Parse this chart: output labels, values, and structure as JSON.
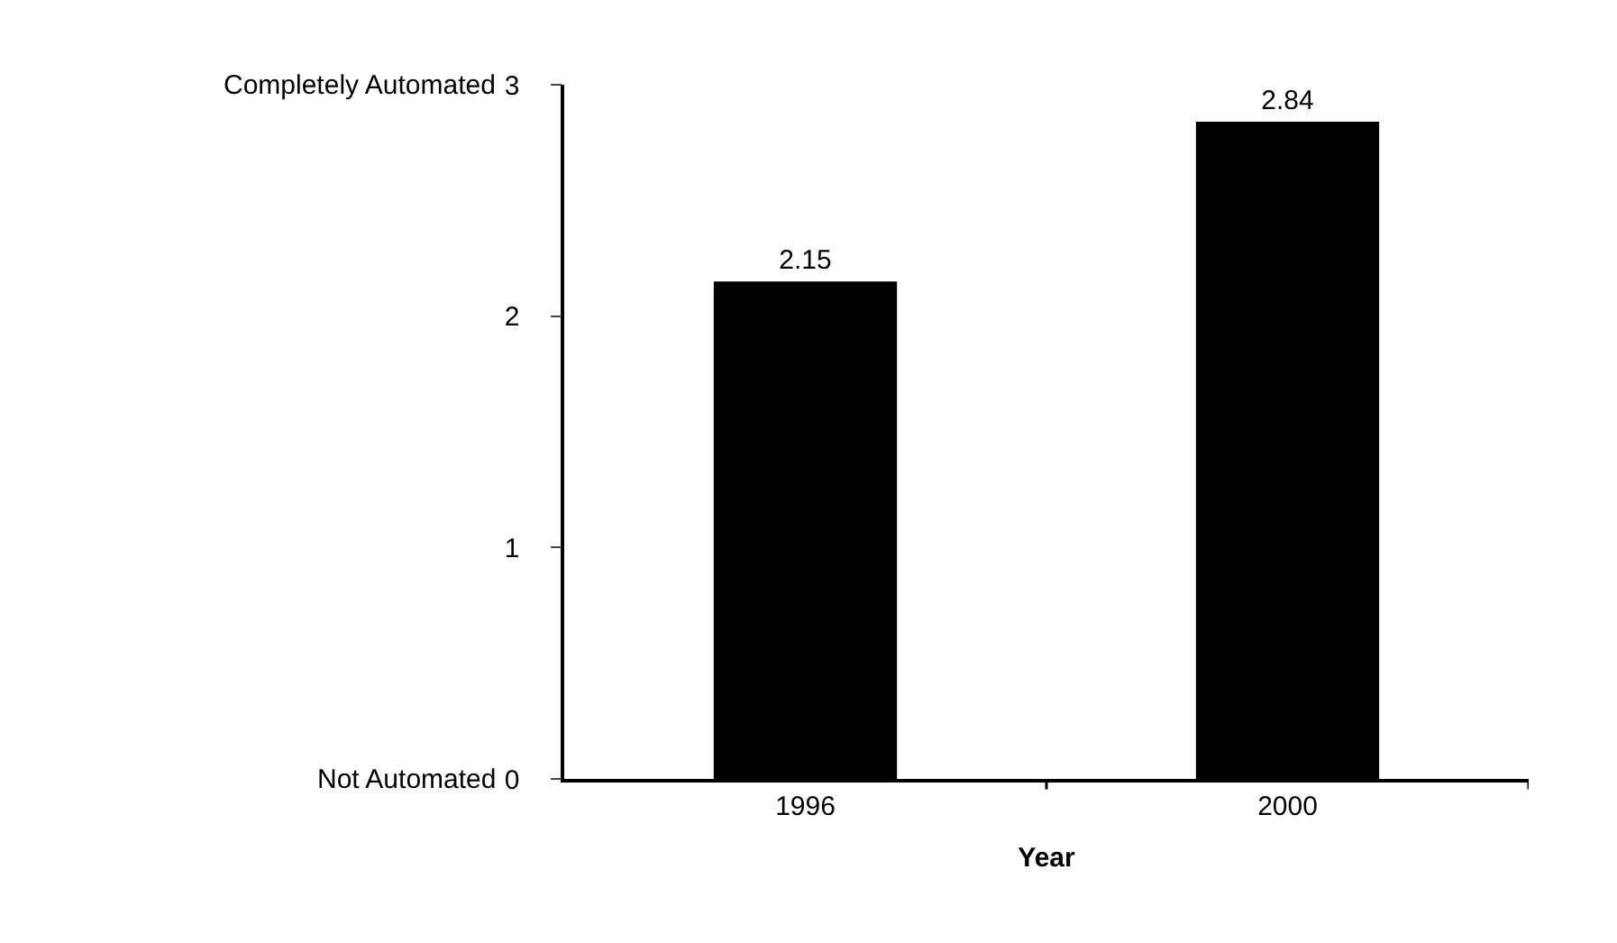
{
  "chart_data": {
    "type": "bar",
    "xlabel": "Year",
    "categories": [
      "1996",
      "2000"
    ],
    "values": [
      2.15,
      2.84
    ],
    "color": "#000000",
    "ylim": [
      0,
      3
    ],
    "yticks": [
      0,
      1,
      2,
      3
    ],
    "data_labels": true,
    "annotations": [
      "Completely Automated",
      "Not Automated"
    ]
  }
}
